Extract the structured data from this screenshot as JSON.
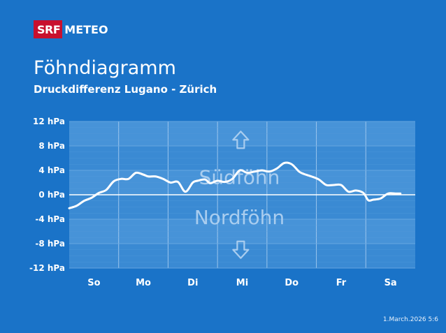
{
  "brand": {
    "srf": "SRF",
    "meteo": "METEO"
  },
  "title": "Föhndiagramm",
  "subtitle": "Druckdifferenz Lugano - Zürich",
  "footer": "1.March.2026 5:6",
  "zones": {
    "south": "Südföhn",
    "north": "Nordföhn"
  },
  "icons": {
    "south": "up-arrow-icon",
    "north": "down-arrow-icon"
  },
  "colors": {
    "background": "#1a73c8",
    "plot_band": "#3a8ad3",
    "plot_band_alt": "#4793d8",
    "line": "#ffffff",
    "brand_red": "#c8102e"
  },
  "chart_data": {
    "type": "line",
    "xlabel": "",
    "ylabel": "",
    "categories": [
      "So",
      "Mo",
      "Di",
      "Mi",
      "Do",
      "Fr",
      "Sa"
    ],
    "y_ticks": [
      12,
      8,
      4,
      0,
      -4,
      -8,
      -12
    ],
    "y_tick_labels": [
      "12 hPa",
      "8 hPa",
      "4 hPa",
      "0 hPa",
      "-4 hPa",
      "-8 hPa",
      "-12 hPa"
    ],
    "ylim": [
      -12,
      12
    ],
    "xlim": [
      0,
      7
    ],
    "grid": true,
    "series": [
      {
        "x": [
          0.0,
          0.15,
          0.3,
          0.45,
          0.6,
          0.75,
          0.9,
          1.05,
          1.2,
          1.35,
          1.5,
          1.6,
          1.75,
          1.9,
          2.05,
          2.2,
          2.35,
          2.5,
          2.6,
          2.75,
          2.85,
          3.0,
          3.15,
          3.3,
          3.45,
          3.6,
          3.75,
          3.9,
          4.05,
          4.2,
          4.35,
          4.5,
          4.65,
          4.75,
          4.9,
          5.05,
          5.2,
          5.35,
          5.5,
          5.65,
          5.8,
          5.95,
          6.05,
          6.15,
          6.3,
          6.45,
          6.6,
          6.7
        ],
        "values": [
          -2.2,
          -1.8,
          -1.0,
          -0.5,
          0.3,
          0.8,
          2.2,
          2.6,
          2.6,
          3.6,
          3.3,
          3.0,
          3.0,
          2.6,
          2.0,
          2.1,
          0.5,
          2.0,
          2.3,
          2.5,
          1.9,
          2.3,
          2.1,
          2.6,
          4.0,
          3.6,
          3.8,
          4.0,
          3.8,
          4.3,
          5.2,
          5.0,
          3.8,
          3.4,
          3.0,
          2.5,
          1.6,
          1.6,
          1.6,
          0.5,
          0.7,
          0.3,
          -0.9,
          -0.8,
          -0.6,
          0.2,
          0.2,
          0.2
        ]
      }
    ]
  }
}
